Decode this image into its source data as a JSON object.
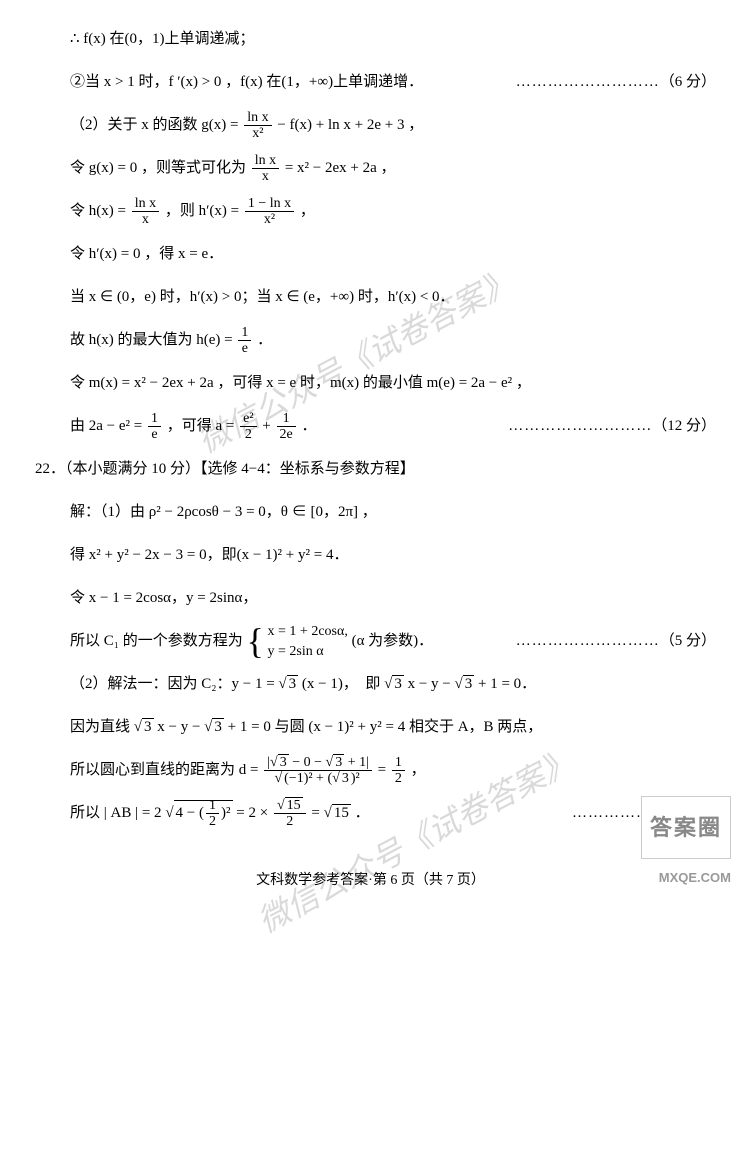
{
  "lines": {
    "l1": "∴ f(x) 在(0，1)上单调递减；",
    "l2_a": "②当 x > 1 时，f ′(x) > 0 ，f(x) 在(1，+∞)上单调递增．",
    "l2_score": "（6 分）",
    "l3_a": "（2）关于 x 的函数 g(x) =",
    "l3_b": " − f(x) + ln x + 2e + 3 ，",
    "l4_a": "令 g(x) = 0 ，则等式可化为 ",
    "l4_b": " = x² − 2ex + 2a ，",
    "l5_a": "令 h(x) = ",
    "l5_b": " ，则 h′(x) = ",
    "l5_c": " ，",
    "l6": "令 h′(x) = 0 ，得 x = e．",
    "l7": "当 x ∈ (0，e) 时，h′(x) > 0；当 x ∈ (e，+∞) 时，h′(x) < 0．",
    "l8_a": "故 h(x) 的最大值为 h(e) = ",
    "l8_b": "．",
    "l9": "令 m(x) = x² − 2ex + 2a ，可得 x = e 时，m(x) 的最小值 m(e) = 2a − e² ，",
    "l10_a": "由 2a − e² = ",
    "l10_b": " ，可得 a = ",
    "l10_c": " + ",
    "l10_d": "．",
    "l10_score": "（12 分）",
    "q22": "22．（本小题满分 10 分）【选修 4−4：坐标系与参数方程】",
    "l11": "解：（1）由 ρ² − 2ρcosθ − 3 = 0，θ ∈ [0，2π] ，",
    "l12": "得 x² + y² − 2x − 3 = 0，即(x − 1)² + y² = 4．",
    "l13": "令 x − 1 = 2cosα，y = 2sinα，",
    "l14_a": "所以 C₁ 的一个参数方程为 ",
    "l14_case1": "x = 1 + 2cosα,",
    "l14_case2": "y = 2sin α",
    "l14_b": " (α 为参数)．",
    "l14_score": "（5 分）",
    "l15_a": "（2）解法一：因为 C₂：y − 1 = ",
    "l15_b": "(x − 1)，　即",
    "l15_c": "x − y − ",
    "l15_d": " + 1 = 0．",
    "l16_a": "因为直线 ",
    "l16_b": "x − y − ",
    "l16_c": " + 1 = 0 与圆 (x − 1)² + y² = 4 相交于 A，B 两点，",
    "l17_a": "所以圆心到直线的距离为 d = ",
    "l17_b": " = ",
    "l17_c": " ，",
    "l18_a": "所以 | AB | = 2",
    "l18_b": " = 2 × ",
    "l18_c": " = ",
    "l18_d": "．",
    "footer": "文科数学参考答案·第 6 页（共 7 页）",
    "watermark": "微信公众号《试卷答案》",
    "logo": "答案圈",
    "logourl": "MXQE.COM",
    "dots": "………………………"
  },
  "fracs": {
    "lnx_x2": {
      "num": "ln x",
      "den": "x²"
    },
    "lnx_x": {
      "num": "ln x",
      "den": "x"
    },
    "dlnx_x2": {
      "num": "1 − ln x",
      "den": "x²"
    },
    "one_e": {
      "num": "1",
      "den": "e"
    },
    "e2_2": {
      "num": "e²",
      "den": "2"
    },
    "one_2e": {
      "num": "1",
      "den": "2e"
    },
    "half": {
      "num": "1",
      "den": "2"
    },
    "sqrt15_2": {
      "num": "√15",
      "den": "2"
    }
  },
  "colors": {
    "text": "#000000",
    "bg": "#ffffff",
    "watermark": "rgba(0,0,0,0.15)"
  }
}
